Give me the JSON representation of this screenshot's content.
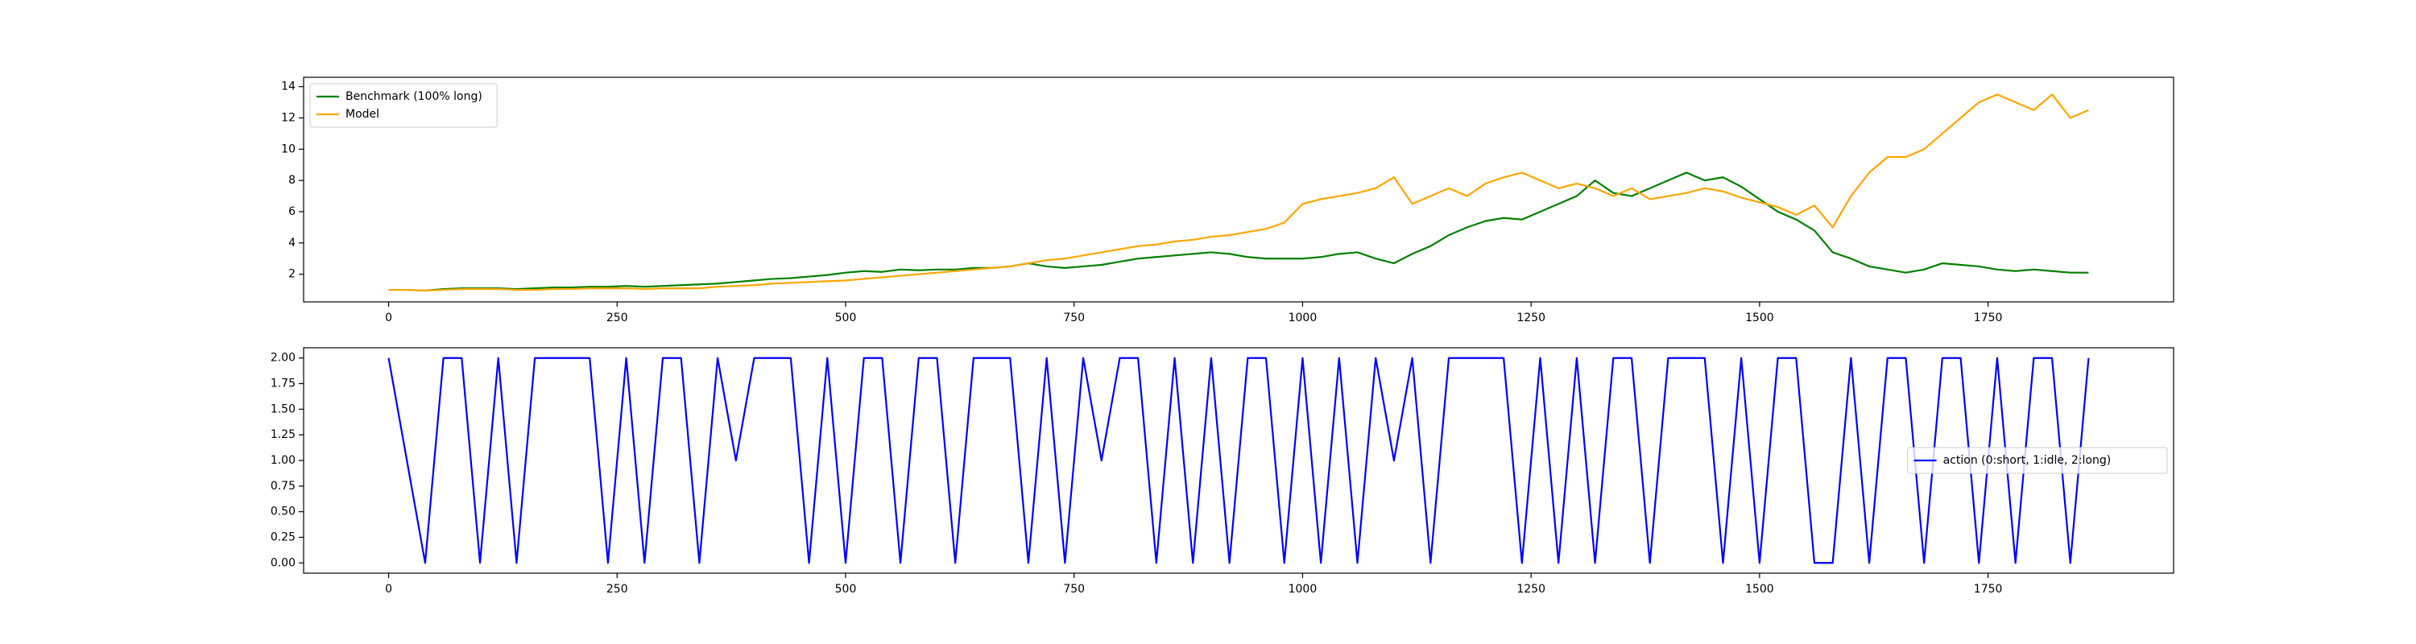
{
  "chart_data": [
    {
      "type": "line",
      "x": [
        0,
        20,
        40,
        60,
        80,
        100,
        120,
        140,
        160,
        180,
        200,
        220,
        240,
        260,
        280,
        300,
        320,
        340,
        360,
        380,
        400,
        420,
        440,
        460,
        480,
        500,
        520,
        540,
        560,
        580,
        600,
        620,
        640,
        660,
        680,
        700,
        720,
        740,
        760,
        780,
        800,
        820,
        840,
        860,
        880,
        900,
        920,
        940,
        960,
        980,
        1000,
        1020,
        1040,
        1060,
        1080,
        1100,
        1120,
        1140,
        1160,
        1180,
        1200,
        1220,
        1240,
        1260,
        1280,
        1300,
        1320,
        1340,
        1360,
        1380,
        1400,
        1420,
        1440,
        1460,
        1480,
        1500,
        1520,
        1540,
        1560,
        1580,
        1600,
        1620,
        1640,
        1660,
        1680,
        1700,
        1720,
        1740,
        1760,
        1780,
        1800,
        1820,
        1840,
        1860
      ],
      "series": [
        {
          "name": "Benchmark (100% long)",
          "color": "#008000",
          "values": [
            1.0,
            1.0,
            0.95,
            1.05,
            1.1,
            1.1,
            1.1,
            1.05,
            1.1,
            1.15,
            1.15,
            1.2,
            1.2,
            1.25,
            1.2,
            1.25,
            1.3,
            1.35,
            1.4,
            1.5,
            1.6,
            1.7,
            1.75,
            1.85,
            1.95,
            2.1,
            2.2,
            2.15,
            2.3,
            2.25,
            2.3,
            2.3,
            2.4,
            2.4,
            2.5,
            2.7,
            2.5,
            2.4,
            2.5,
            2.6,
            2.8,
            3.0,
            3.1,
            3.2,
            3.3,
            3.4,
            3.3,
            3.1,
            3.0,
            3.0,
            3.0,
            3.1,
            3.3,
            3.4,
            3.0,
            2.7,
            3.3,
            3.8,
            4.5,
            5.0,
            5.4,
            5.6,
            5.5,
            6.0,
            6.5,
            7.0,
            8.0,
            7.2,
            7.0,
            7.5,
            8.0,
            8.5,
            8.0,
            8.2,
            7.6,
            6.8,
            6.0,
            5.5,
            4.8,
            3.4,
            3.0,
            2.5,
            2.3,
            2.1,
            2.3,
            2.7,
            2.6,
            2.5,
            2.3,
            2.2,
            2.3,
            2.2,
            2.1,
            2.1
          ]
        },
        {
          "name": "Model",
          "color": "#ffa500",
          "values": [
            1.0,
            1.0,
            0.95,
            1.0,
            1.05,
            1.05,
            1.05,
            1.0,
            1.0,
            1.05,
            1.05,
            1.1,
            1.1,
            1.1,
            1.05,
            1.1,
            1.1,
            1.1,
            1.2,
            1.25,
            1.3,
            1.4,
            1.45,
            1.5,
            1.55,
            1.6,
            1.7,
            1.8,
            1.9,
            2.0,
            2.1,
            2.2,
            2.3,
            2.4,
            2.5,
            2.7,
            2.9,
            3.0,
            3.2,
            3.4,
            3.6,
            3.8,
            3.9,
            4.1,
            4.2,
            4.4,
            4.5,
            4.7,
            4.9,
            5.3,
            6.5,
            6.8,
            7.0,
            7.2,
            7.5,
            8.2,
            6.5,
            7.0,
            7.5,
            7.0,
            7.8,
            8.2,
            8.5,
            8.0,
            7.5,
            7.8,
            7.5,
            7.0,
            7.5,
            6.8,
            7.0,
            7.2,
            7.5,
            7.3,
            6.9,
            6.6,
            6.3,
            5.8,
            6.4,
            5.0,
            7.0,
            8.5,
            9.5,
            9.5,
            10.0,
            11.0,
            12.0,
            13.0,
            13.5,
            13.0,
            12.5,
            13.5,
            12.0,
            12.5
          ]
        }
      ],
      "xlim": [
        -93,
        1953
      ],
      "xticks": [
        0,
        250,
        500,
        750,
        1000,
        1250,
        1500,
        1750
      ],
      "ylim": [
        0.23,
        14.6
      ],
      "yticks": [
        2,
        4,
        6,
        8,
        10,
        12,
        14
      ],
      "legend": "upper left"
    },
    {
      "type": "line",
      "x": [
        0,
        20,
        40,
        60,
        80,
        100,
        120,
        140,
        160,
        180,
        200,
        220,
        240,
        260,
        280,
        300,
        320,
        340,
        360,
        380,
        400,
        420,
        440,
        460,
        480,
        500,
        520,
        540,
        560,
        580,
        600,
        620,
        640,
        660,
        680,
        700,
        720,
        740,
        760,
        780,
        800,
        820,
        840,
        860,
        880,
        900,
        920,
        940,
        960,
        980,
        1000,
        1020,
        1040,
        1060,
        1080,
        1100,
        1120,
        1140,
        1160,
        1180,
        1200,
        1220,
        1240,
        1260,
        1280,
        1300,
        1320,
        1340,
        1360,
        1380,
        1400,
        1420,
        1440,
        1460,
        1480,
        1500,
        1520,
        1540,
        1560,
        1580,
        1600,
        1620,
        1640,
        1660,
        1680,
        1700,
        1720,
        1740,
        1760,
        1780,
        1800,
        1820,
        1840,
        1860
      ],
      "series": [
        {
          "name": "action (0:short, 1:idle, 2:long)",
          "color": "#0000ff",
          "values": [
            2,
            1,
            0,
            2,
            2,
            0,
            2,
            0,
            2,
            2,
            2,
            2,
            0,
            2,
            0,
            2,
            2,
            0,
            2,
            1,
            2,
            2,
            2,
            0,
            2,
            0,
            2,
            2,
            0,
            2,
            2,
            0,
            2,
            2,
            2,
            0,
            2,
            0,
            2,
            1,
            2,
            2,
            0,
            2,
            0,
            2,
            0,
            2,
            2,
            0,
            2,
            0,
            2,
            0,
            2,
            1,
            2,
            0,
            2,
            2,
            2,
            2,
            0,
            2,
            0,
            2,
            0,
            2,
            2,
            0,
            2,
            2,
            2,
            0,
            2,
            0,
            2,
            2,
            0,
            0,
            2,
            0,
            2,
            2,
            0,
            2,
            2,
            0,
            2,
            0,
            2,
            2,
            0,
            2
          ]
        }
      ],
      "xlim": [
        -93,
        1953
      ],
      "xticks": [
        0,
        250,
        500,
        750,
        1000,
        1250,
        1500,
        1750
      ],
      "ylim": [
        -0.1,
        2.1
      ],
      "yticks": [
        {
          "value": 0,
          "label": "0.00"
        },
        {
          "value": 0.25,
          "label": "0.25"
        },
        {
          "value": 0.5,
          "label": "0.50"
        },
        {
          "value": 0.75,
          "label": "0.75"
        },
        {
          "value": 1,
          "label": "1.00"
        },
        {
          "value": 1.25,
          "label": "1.25"
        },
        {
          "value": 1.5,
          "label": "1.50"
        },
        {
          "value": 1.75,
          "label": "1.75"
        },
        {
          "value": 2,
          "label": "2.00"
        }
      ],
      "legend": "center right"
    }
  ]
}
